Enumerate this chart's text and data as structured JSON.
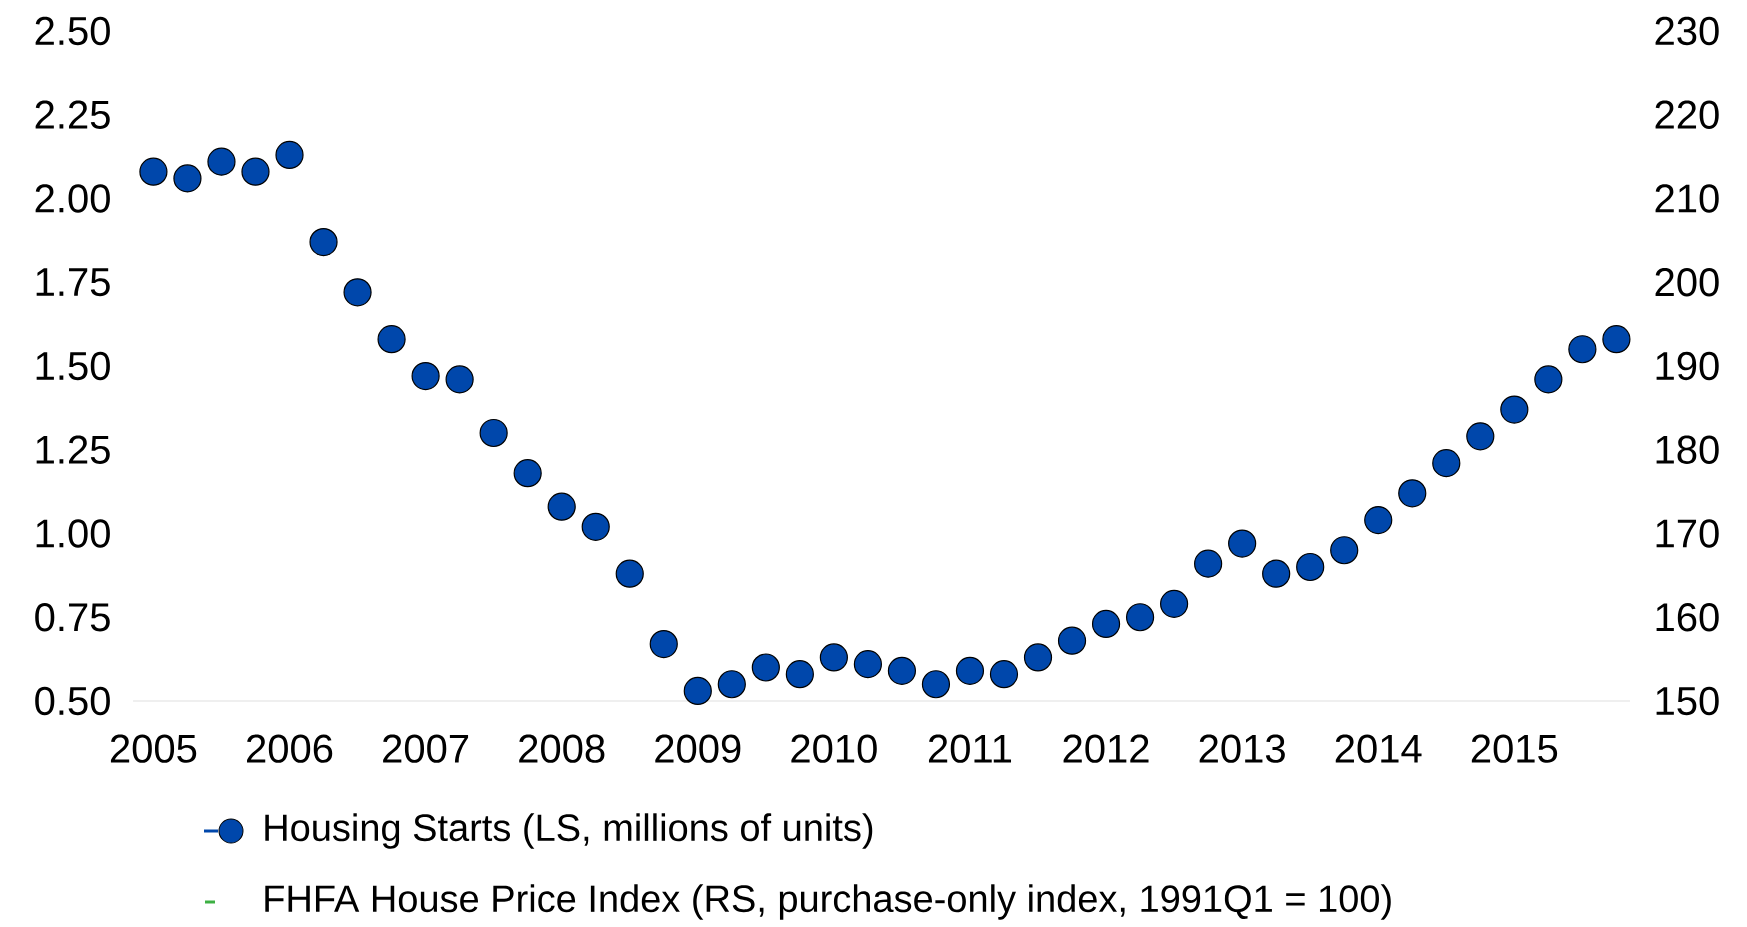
{
  "chart_data": {
    "type": "scatter",
    "x": [
      2005,
      2005.25,
      2005.5,
      2005.75,
      2006,
      2006.25,
      2006.5,
      2006.75,
      2007,
      2007.25,
      2007.5,
      2007.75,
      2008,
      2008.25,
      2008.5,
      2008.75,
      2009,
      2009.25,
      2009.5,
      2009.75,
      2010,
      2010.25,
      2010.5,
      2010.75,
      2011,
      2011.25,
      2011.5,
      2011.75,
      2012,
      2012.25,
      2012.5,
      2012.75,
      2013,
      2013.25,
      2013.5,
      2013.75,
      2014,
      2014.25,
      2014.5,
      2014.75,
      2015,
      2015.25,
      2015.5,
      2015.75
    ],
    "xlim": [
      2004.85,
      2015.85
    ],
    "xticks": [
      2005,
      2006,
      2007,
      2008,
      2009,
      2010,
      2011,
      2012,
      2013,
      2014,
      2015
    ],
    "ylim": [
      0.5,
      2.5
    ],
    "yticks": [
      {
        "value": 0.5,
        "label": "0.50"
      },
      {
        "value": 0.75,
        "label": "0.75"
      },
      {
        "value": 1.0,
        "label": "1.00"
      },
      {
        "value": 1.25,
        "label": "1.25"
      },
      {
        "value": 1.5,
        "label": "1.50"
      },
      {
        "value": 1.75,
        "label": "1.75"
      },
      {
        "value": 2.0,
        "label": "2.00"
      },
      {
        "value": 2.25,
        "label": "2.25"
      },
      {
        "value": 2.5,
        "label": "2.50"
      }
    ],
    "y2lim": [
      150,
      230
    ],
    "y2ticks": [
      150,
      160,
      170,
      180,
      190,
      200,
      210,
      220,
      230
    ],
    "legend": "bottom",
    "marker": "circle",
    "series": [
      {
        "name": "Housing Starts (LS, millions of units)",
        "color": "#0047ab",
        "values": [
          2.08,
          2.06,
          2.11,
          2.08,
          2.13,
          1.87,
          1.72,
          1.58,
          1.47,
          1.46,
          1.3,
          1.18,
          1.08,
          1.02,
          0.88,
          0.67,
          0.53,
          0.55,
          0.6,
          0.58,
          0.63,
          0.61,
          0.59,
          0.55,
          0.59,
          0.58,
          0.63,
          0.68,
          0.73,
          0.75,
          0.79,
          0.91,
          0.97,
          0.88,
          0.9,
          0.95,
          1.04,
          1.12,
          1.21,
          1.29,
          1.37,
          1.46,
          1.55,
          1.58
        ]
      },
      {
        "name": "FHFA House Price Index (RS, purchase-only index, 1991Q1 = 100)",
        "color": "#3cb043",
        "type": "line",
        "values": [
          null,
          null,
          null,
          null,
          null,
          null,
          null,
          null,
          null,
          null,
          null,
          null,
          null,
          null,
          null,
          null,
          null,
          null,
          null,
          null,
          null,
          null,
          null,
          null,
          null,
          null,
          null,
          null,
          null,
          null,
          null,
          null,
          null,
          null,
          null,
          null,
          null,
          null,
          null,
          null,
          null,
          null,
          null,
          null
        ]
      }
    ]
  }
}
